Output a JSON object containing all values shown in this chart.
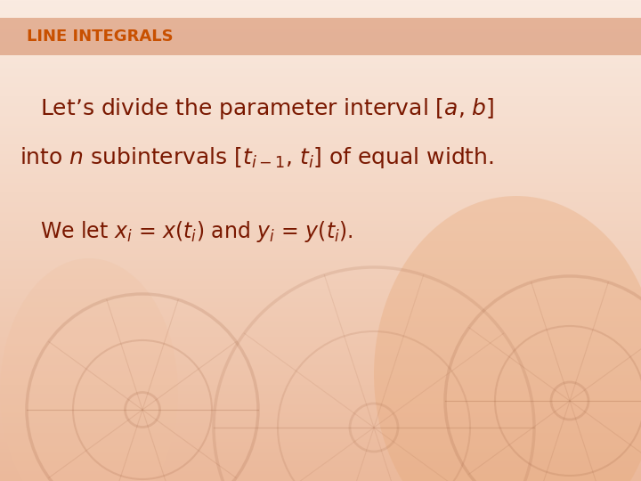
{
  "title": "LINE INTEGRALS",
  "title_color": "#C85000",
  "title_bar_color": "#E8B090",
  "bg_color": "#F5E0D0",
  "text_color": "#7A1800",
  "font_size_title": 13,
  "font_size_main": 18,
  "font_size_line3": 17,
  "line1": "Let’s divide the parameter interval [$a$, $b$]",
  "line2": "into $n$ subintervals [$t_{i-1}$, $t_i$] of equal width.",
  "line3": "We let $x_i$ = $x$($t_i$) and $y_i$ = $y$($t_i$)."
}
